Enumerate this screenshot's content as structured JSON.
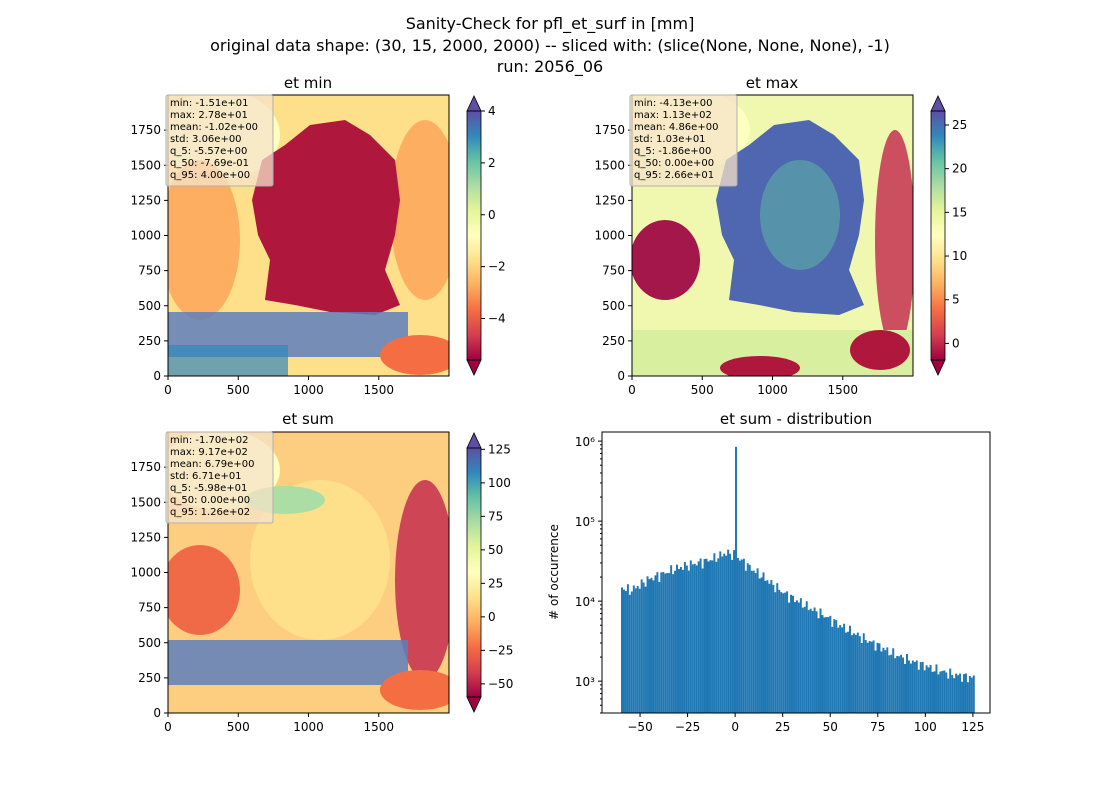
{
  "figure": {
    "title_lines": [
      "Sanity-Check for pfl_et_surf in [mm]",
      "original data shape: (30, 15, 2000, 2000) -- sliced with: (slice(None, None, None), -1)",
      "run: 2056_06"
    ]
  },
  "chart_data": [
    {
      "type": "heatmap",
      "title": "et min",
      "colormap": "Spectral",
      "x_ticks": [
        0,
        500,
        1000,
        1500
      ],
      "y_ticks": [
        0,
        250,
        500,
        750,
        1000,
        1250,
        1500,
        1750
      ],
      "xlim": [
        0,
        2000
      ],
      "ylim": [
        0,
        2000
      ],
      "colorbar": {
        "ticks": [
          4,
          2,
          0,
          -2,
          -4
        ],
        "tick_labels": [
          "4",
          "2",
          "0",
          "−2",
          "−4"
        ],
        "range": [
          -5.6,
          4.0
        ],
        "extend": "both"
      },
      "stats": [
        "min: -1.51e+01",
        "max: 2.78e+01",
        "mean: -1.02e+00",
        "std: 3.06e+00",
        "q_5: -5.57e+00",
        "q_50: -7.69e-01",
        "q_95: 4.00e+00"
      ]
    },
    {
      "type": "heatmap",
      "title": "et max",
      "colormap": "Spectral",
      "x_ticks": [
        0,
        500,
        1000,
        1500
      ],
      "y_ticks": [
        0,
        250,
        500,
        750,
        1000,
        1250,
        1500,
        1750
      ],
      "xlim": [
        0,
        2000
      ],
      "ylim": [
        0,
        2000
      ],
      "colorbar": {
        "ticks": [
          25,
          20,
          15,
          10,
          5,
          0
        ],
        "tick_labels": [
          "25",
          "20",
          "15",
          "10",
          "5",
          "0"
        ],
        "range": [
          -1.9,
          26.6
        ],
        "extend": "both"
      },
      "stats": [
        "min: -4.13e+00",
        "max: 1.13e+02",
        "mean: 4.86e+00",
        "std: 1.03e+01",
        "q_5: -1.86e+00",
        "q_50: 0.00e+00",
        "q_95: 2.66e+01"
      ]
    },
    {
      "type": "heatmap",
      "title": "et sum",
      "colormap": "Spectral",
      "x_ticks": [
        0,
        500,
        1000,
        1500
      ],
      "y_ticks": [
        0,
        250,
        500,
        750,
        1000,
        1250,
        1500,
        1750
      ],
      "xlim": [
        0,
        2000
      ],
      "ylim": [
        0,
        2000
      ],
      "colorbar": {
        "ticks": [
          125,
          100,
          75,
          50,
          25,
          0,
          -25,
          -50
        ],
        "tick_labels": [
          "125",
          "100",
          "75",
          "50",
          "25",
          "0",
          "−25",
          "−50"
        ],
        "range": [
          -59.8,
          126
        ],
        "extend": "both"
      },
      "stats": [
        "min: -1.70e+02",
        "max: 9.17e+02",
        "mean: 6.79e+00",
        "std: 6.71e+01",
        "q_5: -5.98e+01",
        "q_50: 0.00e+00",
        "q_95: 1.26e+02"
      ]
    },
    {
      "type": "bar",
      "title": "et sum - distribution",
      "xlabel": "",
      "ylabel": "# of occurrence",
      "yscale": "log",
      "xlim": [
        -70,
        134
      ],
      "ylim": [
        400,
        1300000
      ],
      "x_ticks": [
        -50,
        -25,
        0,
        25,
        50,
        75,
        100,
        125
      ],
      "x_tick_labels": [
        "−50",
        "−25",
        "0",
        "25",
        "50",
        "75",
        "100",
        "125"
      ],
      "y_ticks": [
        1000,
        10000,
        100000,
        1000000
      ],
      "y_tick_labels": [
        "10³",
        "10⁴",
        "10⁵",
        "10⁶"
      ],
      "bar_color": "#1f77b4",
      "bin_range": [
        -60,
        126
      ],
      "peak": {
        "x": 0,
        "count": 850000
      },
      "bins": [
        {
          "x": -60,
          "count": 15000
        },
        {
          "x": -55,
          "count": 13500
        },
        {
          "x": -50,
          "count": 16000
        },
        {
          "x": -45,
          "count": 19000
        },
        {
          "x": -40,
          "count": 21000
        },
        {
          "x": -35,
          "count": 23500
        },
        {
          "x": -30,
          "count": 26000
        },
        {
          "x": -25,
          "count": 28000
        },
        {
          "x": -20,
          "count": 30000
        },
        {
          "x": -15,
          "count": 32000
        },
        {
          "x": -10,
          "count": 35000
        },
        {
          "x": -5,
          "count": 40000
        },
        {
          "x": 0,
          "count": 38000
        },
        {
          "x": 5,
          "count": 30000
        },
        {
          "x": 10,
          "count": 24000
        },
        {
          "x": 15,
          "count": 20000
        },
        {
          "x": 20,
          "count": 16000
        },
        {
          "x": 25,
          "count": 13000
        },
        {
          "x": 30,
          "count": 11000
        },
        {
          "x": 35,
          "count": 9500
        },
        {
          "x": 40,
          "count": 8000
        },
        {
          "x": 45,
          "count": 7000
        },
        {
          "x": 50,
          "count": 6000
        },
        {
          "x": 55,
          "count": 5000
        },
        {
          "x": 60,
          "count": 4300
        },
        {
          "x": 65,
          "count": 3700
        },
        {
          "x": 70,
          "count": 3200
        },
        {
          "x": 75,
          "count": 2800
        },
        {
          "x": 80,
          "count": 2400
        },
        {
          "x": 85,
          "count": 2100
        },
        {
          "x": 90,
          "count": 1900
        },
        {
          "x": 95,
          "count": 1700
        },
        {
          "x": 100,
          "count": 1550
        },
        {
          "x": 105,
          "count": 1400
        },
        {
          "x": 110,
          "count": 1300
        },
        {
          "x": 115,
          "count": 1200
        },
        {
          "x": 120,
          "count": 1150
        },
        {
          "x": 125,
          "count": 1100
        }
      ]
    }
  ],
  "colors": {
    "spectral": [
      "#5e4fa2",
      "#3288bd",
      "#66c2a5",
      "#abdda4",
      "#e6f598",
      "#ffffbf",
      "#fee08b",
      "#fdae61",
      "#f46d43",
      "#d53e4f",
      "#9e0142"
    ],
    "hist_bar": "#1f77b4",
    "stats_box_bg": "#f5e3c8",
    "stats_box_border": "#b0b0b0"
  }
}
